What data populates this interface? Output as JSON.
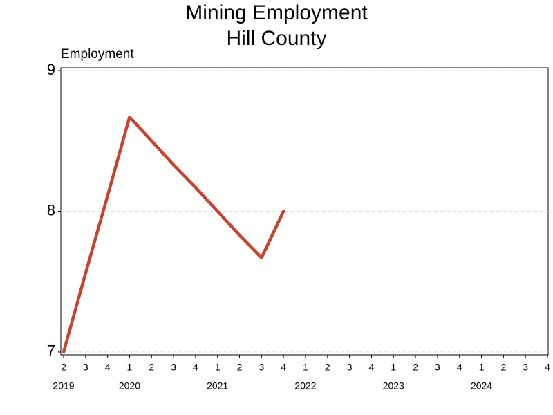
{
  "chart_data": {
    "type": "line",
    "title": "Mining Employment",
    "subtitle": "Hill County",
    "y_label": "Employment",
    "categories": [
      "2",
      "3",
      "4",
      "1",
      "2",
      "3",
      "4",
      "1",
      "2",
      "3",
      "4",
      "1",
      "2",
      "3",
      "4",
      "1",
      "2",
      "3",
      "4",
      "1",
      "2",
      "3",
      "4"
    ],
    "year_labels": [
      "2019",
      null,
      null,
      "2020",
      null,
      null,
      null,
      "2021",
      null,
      null,
      null,
      "2022",
      null,
      null,
      null,
      "2023",
      null,
      null,
      null,
      "2024",
      null,
      null,
      null
    ],
    "series": [
      {
        "name": "Employment",
        "color": "#c8432e",
        "values": [
          7,
          7.56,
          8.11,
          8.67,
          8.5,
          8.33,
          8.17,
          8,
          7.83,
          7.67,
          8,
          null,
          null,
          null,
          null,
          null,
          null,
          null,
          null,
          null,
          null,
          null,
          null
        ]
      }
    ],
    "ylim": [
      6.98,
      9.02
    ],
    "yticks": [
      7,
      8,
      9
    ],
    "grid": true
  }
}
